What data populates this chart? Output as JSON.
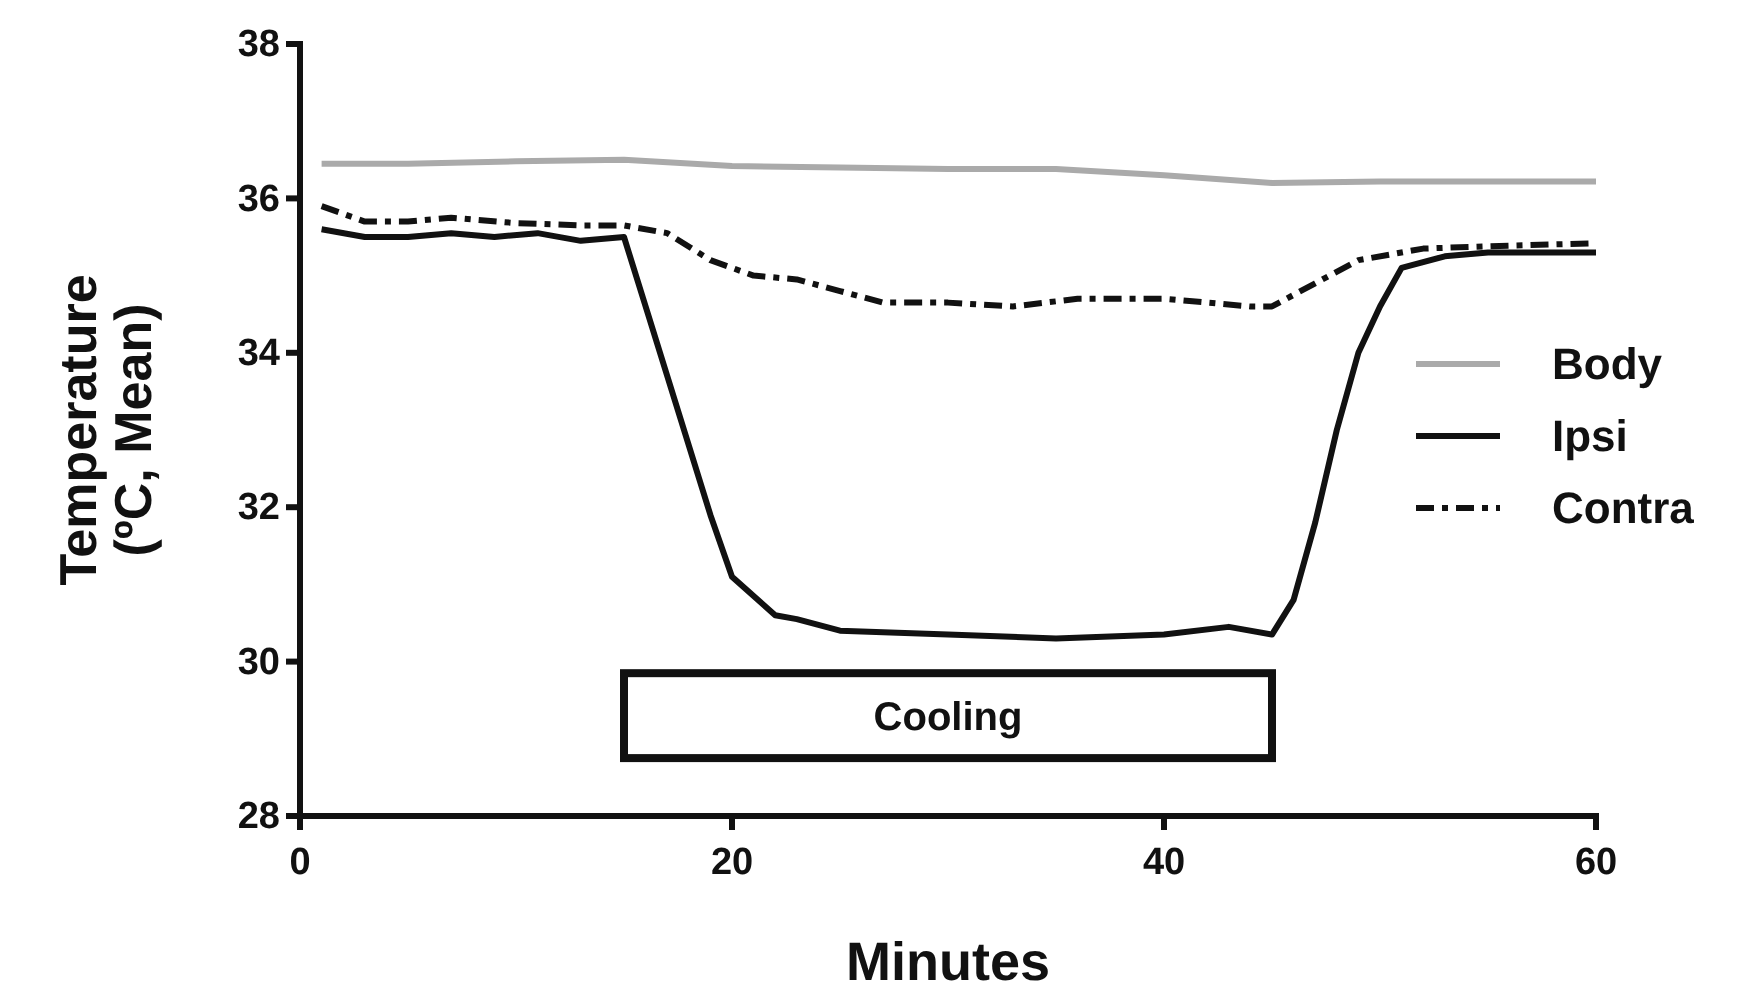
{
  "chart_data": {
    "type": "line",
    "xlabel": "Minutes",
    "ylabel": "Temperature\n(ºC, Mean)",
    "xlim": [
      0,
      60
    ],
    "xticks": [
      0,
      20,
      40,
      60
    ],
    "ylim": [
      28,
      38
    ],
    "yticks": [
      28,
      30,
      32,
      34,
      36,
      38
    ],
    "grid": false,
    "legend": "right",
    "marker": "none",
    "bands": [
      {
        "axis": "x",
        "from": 15,
        "to": 45,
        "label": "Cooling",
        "color": "#ffffff"
      }
    ],
    "series": [
      {
        "name": "Body",
        "color": "#aaaaaa",
        "line_style": "solid",
        "x": [
          1,
          5,
          10,
          15,
          20,
          25,
          30,
          35,
          40,
          45,
          50,
          55,
          60
        ],
        "values": [
          36.45,
          36.45,
          36.48,
          36.5,
          36.42,
          36.4,
          36.38,
          36.38,
          36.3,
          36.2,
          36.22,
          36.22,
          36.22
        ]
      },
      {
        "name": "Ipsi",
        "color": "#111111",
        "line_style": "solid",
        "x": [
          1,
          3,
          5,
          7,
          9,
          11,
          13,
          15,
          16,
          17,
          19,
          20,
          22,
          23,
          25,
          30,
          35,
          40,
          43,
          45,
          46,
          47,
          48,
          49,
          50,
          51,
          53,
          55,
          60
        ],
        "values": [
          35.6,
          35.5,
          35.5,
          35.55,
          35.5,
          35.55,
          35.45,
          35.5,
          34.6,
          33.7,
          31.9,
          31.1,
          30.6,
          30.55,
          30.4,
          30.35,
          30.3,
          30.35,
          30.45,
          30.35,
          30.8,
          31.8,
          33.0,
          34.0,
          34.6,
          35.1,
          35.25,
          35.3,
          35.3
        ]
      },
      {
        "name": "Contra",
        "color": "#111111",
        "line_style": "dashed",
        "x": [
          1,
          3,
          5,
          7,
          10,
          13,
          15,
          17,
          19,
          21,
          23,
          25,
          27,
          30,
          33,
          36,
          40,
          44,
          45,
          47,
          49,
          52,
          55,
          60
        ],
        "values": [
          35.9,
          35.7,
          35.7,
          35.75,
          35.68,
          35.65,
          35.65,
          35.55,
          35.2,
          35.0,
          34.95,
          34.8,
          34.65,
          34.65,
          34.6,
          34.7,
          34.7,
          34.6,
          34.6,
          34.9,
          35.2,
          35.35,
          35.38,
          35.42
        ]
      }
    ]
  }
}
